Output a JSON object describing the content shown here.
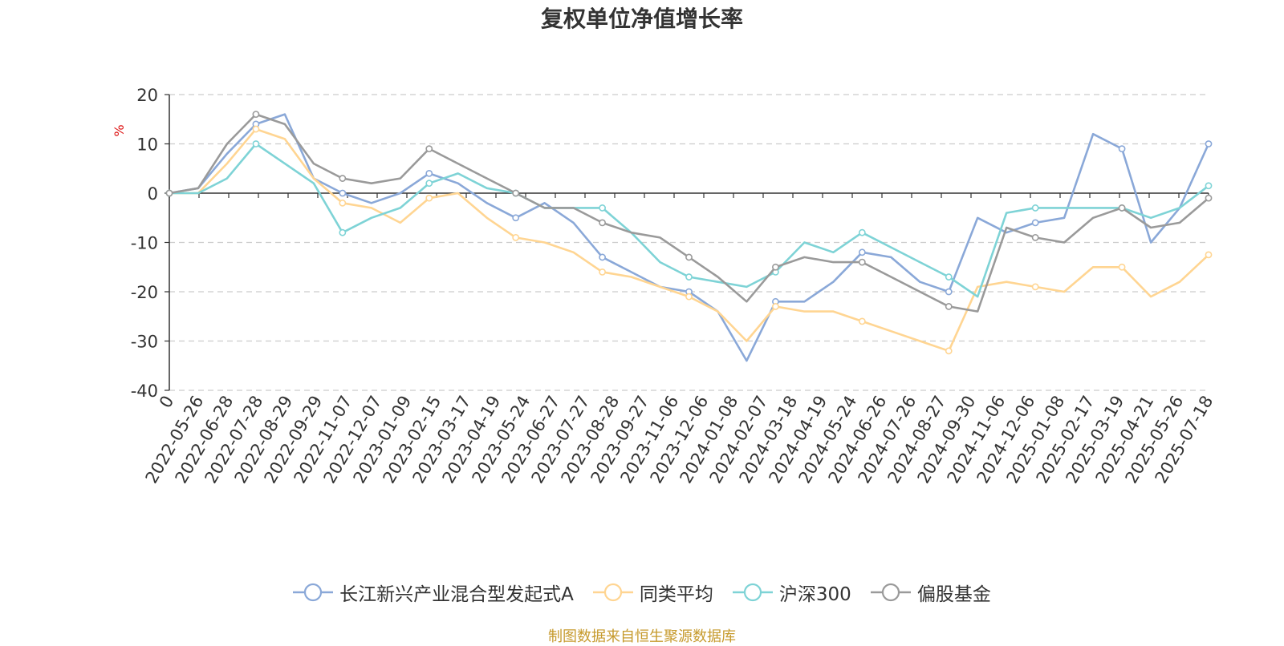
{
  "chart_data": {
    "type": "line",
    "title": "复权单位净值增长率",
    "ylabel": "%",
    "ylim": [
      -40,
      20
    ],
    "yticks": [
      20,
      10,
      0,
      -10,
      -20,
      -30,
      -40
    ],
    "x_ticks": [
      "0",
      "2022-05-26",
      "2022-06-28",
      "2022-07-28",
      "2022-08-29",
      "2022-09-29",
      "2022-11-07",
      "2022-12-07",
      "2023-01-09",
      "2023-02-15",
      "2023-03-17",
      "2023-04-19",
      "2023-05-24",
      "2023-06-27",
      "2023-07-27",
      "2023-08-28",
      "2023-09-27",
      "2023-11-06",
      "2023-12-06",
      "2024-01-08",
      "2024-02-07",
      "2024-03-18",
      "2024-04-19",
      "2024-05-24",
      "2024-06-26",
      "2024-07-26",
      "2024-08-27",
      "2024-09-30",
      "2024-11-06",
      "2024-12-06",
      "2025-01-08",
      "2025-02-17",
      "2025-03-19",
      "2025-04-21",
      "2025-05-26",
      "2025-07-18"
    ],
    "grid": true,
    "legend_position": "bottom",
    "series": [
      {
        "name": "长江新兴产业混合型发起式A",
        "color": "#8aa8d8",
        "values": [
          0,
          1,
          8,
          14,
          16,
          3,
          0,
          -2,
          0,
          4,
          2,
          -2,
          -5,
          -2,
          -6,
          -13,
          -16,
          -19,
          -20,
          -24,
          -34,
          -22,
          -22,
          -18,
          -12,
          -13,
          -18,
          -20,
          -5,
          -8,
          -6,
          -5,
          12,
          9,
          -10,
          -3,
          10
        ]
      },
      {
        "name": "同类平均",
        "color": "#ffd592",
        "values": [
          0,
          0,
          6,
          13,
          11,
          3,
          -2,
          -3,
          -6,
          -1,
          0,
          -5,
          -9,
          -10,
          -12,
          -16,
          -17,
          -19,
          -21,
          -24,
          -30,
          -23,
          -24,
          -24,
          -26,
          -28,
          -30,
          -32,
          -19,
          -18,
          -19,
          -20,
          -15,
          -15,
          -21,
          -18,
          -12.5
        ]
      },
      {
        "name": "沪深300",
        "color": "#7ed3d6",
        "values": [
          0,
          0,
          3,
          10,
          6,
          2,
          -8,
          -5,
          -3,
          2,
          4,
          1,
          0,
          -3,
          -3,
          -3,
          -8,
          -14,
          -17,
          -18,
          -19,
          -16,
          -10,
          -12,
          -8,
          -11,
          -14,
          -17,
          -21,
          -4,
          -3,
          -3,
          -3,
          -3,
          -5,
          -3,
          1.5
        ]
      },
      {
        "name": "偏股基金",
        "color": "#9a9a9a",
        "values": [
          0,
          1,
          10,
          16,
          14,
          6,
          3,
          2,
          3,
          9,
          6,
          3,
          0,
          -3,
          -3,
          -6,
          -8,
          -9,
          -13,
          -17,
          -22,
          -15,
          -13,
          -14,
          -14,
          -17,
          -20,
          -23,
          -24,
          -7,
          -9,
          -10,
          -5,
          -3,
          -7,
          -6,
          -1
        ]
      }
    ]
  },
  "source_note": "制图数据来自恒生聚源数据库"
}
